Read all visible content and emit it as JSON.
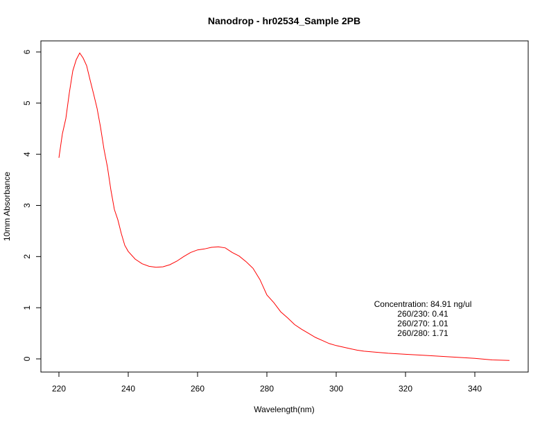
{
  "chart_data": {
    "type": "line",
    "title": "Nanodrop - hr02534_Sample 2PB",
    "xlabel": "Wavelength(nm)",
    "ylabel": "10mm Absorbance",
    "xlim": [
      220,
      350
    ],
    "ylim": [
      0,
      6
    ],
    "x_ticks": [
      220,
      240,
      260,
      280,
      300,
      320,
      340
    ],
    "y_ticks": [
      0,
      1,
      2,
      3,
      4,
      5,
      6
    ],
    "grid": false,
    "series": [
      {
        "color": "#ff0000",
        "x": [
          220,
          221,
          222,
          223,
          224,
          225,
          226,
          227,
          228,
          229,
          230,
          231,
          232,
          233,
          234,
          235,
          236,
          237,
          238,
          239,
          240,
          242,
          244,
          246,
          248,
          250,
          252,
          254,
          256,
          258,
          260,
          262,
          264,
          266,
          268,
          270,
          272,
          274,
          276,
          278,
          280,
          282,
          284,
          286,
          288,
          290,
          292,
          294,
          296,
          298,
          300,
          302,
          304,
          306,
          308,
          310,
          315,
          320,
          325,
          330,
          335,
          340,
          345,
          350
        ],
        "y": [
          3.93,
          4.4,
          4.7,
          5.2,
          5.63,
          5.85,
          5.98,
          5.88,
          5.73,
          5.45,
          5.18,
          4.9,
          4.53,
          4.1,
          3.75,
          3.3,
          2.92,
          2.72,
          2.45,
          2.22,
          2.1,
          1.95,
          1.86,
          1.81,
          1.79,
          1.8,
          1.84,
          1.91,
          2.0,
          2.08,
          2.13,
          2.15,
          2.18,
          2.19,
          2.17,
          2.08,
          2.01,
          1.9,
          1.77,
          1.55,
          1.25,
          1.1,
          0.92,
          0.8,
          0.67,
          0.58,
          0.5,
          0.42,
          0.36,
          0.3,
          0.26,
          0.23,
          0.2,
          0.17,
          0.15,
          0.14,
          0.11,
          0.09,
          0.07,
          0.05,
          0.03,
          0.01,
          -0.02,
          -0.03
        ]
      }
    ],
    "annotations": [
      "Concentration: 84.91 ng/ul",
      "260/230: 0.41",
      "260/270: 1.01",
      "260/280: 1.71"
    ]
  }
}
